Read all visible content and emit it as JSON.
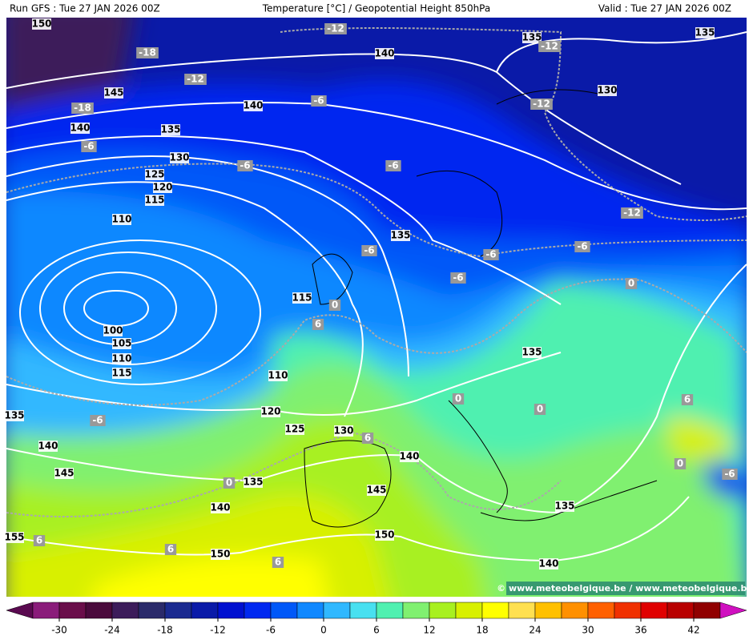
{
  "header": {
    "left": "Run GFS : Tue 27 JAN 2026 00Z",
    "title": "Temperature [°C] / Geopotential Height 850hPa",
    "right": "Valid : Tue 27 JAN 2026 00Z"
  },
  "map": {
    "height_labels": [
      150,
      140,
      135,
      135,
      145,
      140,
      130,
      140,
      135,
      130,
      125,
      120,
      115,
      110,
      135,
      115,
      100,
      105,
      110,
      115,
      110,
      135,
      135,
      120,
      125,
      130,
      140,
      140,
      145,
      135,
      145,
      140,
      135,
      150,
      155,
      150,
      140
    ],
    "temperature_labels": [
      -12,
      -18,
      -12,
      -12,
      -6,
      -18,
      -12,
      -6,
      -6,
      -6,
      -12,
      -6,
      -6,
      -6,
      -6,
      0,
      0,
      6,
      0,
      0,
      6,
      -6,
      6,
      0,
      -6,
      0,
      6,
      6,
      6
    ]
  },
  "watermark": "© www.meteobelgique.be / www.meteobelgique.be",
  "colorbar": {
    "lim": [
      -36,
      48
    ],
    "ticks": [
      -30,
      -24,
      -18,
      -12,
      -6,
      0,
      6,
      12,
      18,
      24,
      30,
      36,
      42
    ],
    "colors": [
      "#5a0a50",
      "#8a1c7a",
      "#6a0e4a",
      "#4a0a3c",
      "#3c1c5a",
      "#2a2a6a",
      "#1a2a90",
      "#0a1aa8",
      "#0010d0",
      "#0028f0",
      "#0058f8",
      "#1088ff",
      "#30b8ff",
      "#48e0f0",
      "#50f0b0",
      "#80f070",
      "#a8f020",
      "#d8f000",
      "#ffff00",
      "#ffe050",
      "#ffc000",
      "#ff9000",
      "#ff6000",
      "#f03000",
      "#e00000",
      "#b80000",
      "#900000",
      "#d010c0"
    ]
  }
}
